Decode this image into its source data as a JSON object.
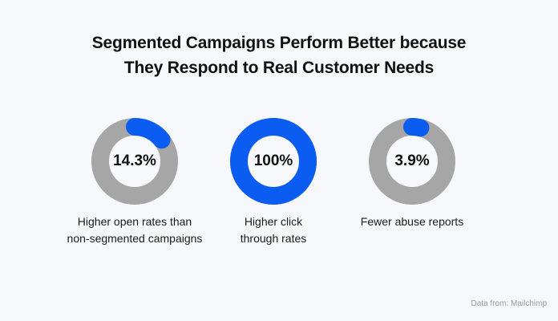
{
  "title": {
    "line1": "Segmented Campaigns Perform Better because",
    "line2": "They Respond to Real Customer Needs"
  },
  "colors": {
    "background": "#f7f8fb",
    "ring": "#a6a6a6",
    "accent": "#0b5cf0"
  },
  "chart_data": {
    "type": "pie",
    "title": "Segmented Campaigns Perform Better because They Respond to Real Customer Needs",
    "items": [
      {
        "label": "14.3%",
        "value": 14.3,
        "caption_line1": "Higher open rates than",
        "caption_line2": "non-segmented campaigns"
      },
      {
        "label": "100%",
        "value": 100,
        "caption_line1": "Higher click",
        "caption_line2": "through rates"
      },
      {
        "label": "3.9%",
        "value": 3.9,
        "caption_line1": "Fewer abuse reports",
        "caption_line2": ""
      }
    ]
  },
  "source": "Data from: Mailchimp"
}
